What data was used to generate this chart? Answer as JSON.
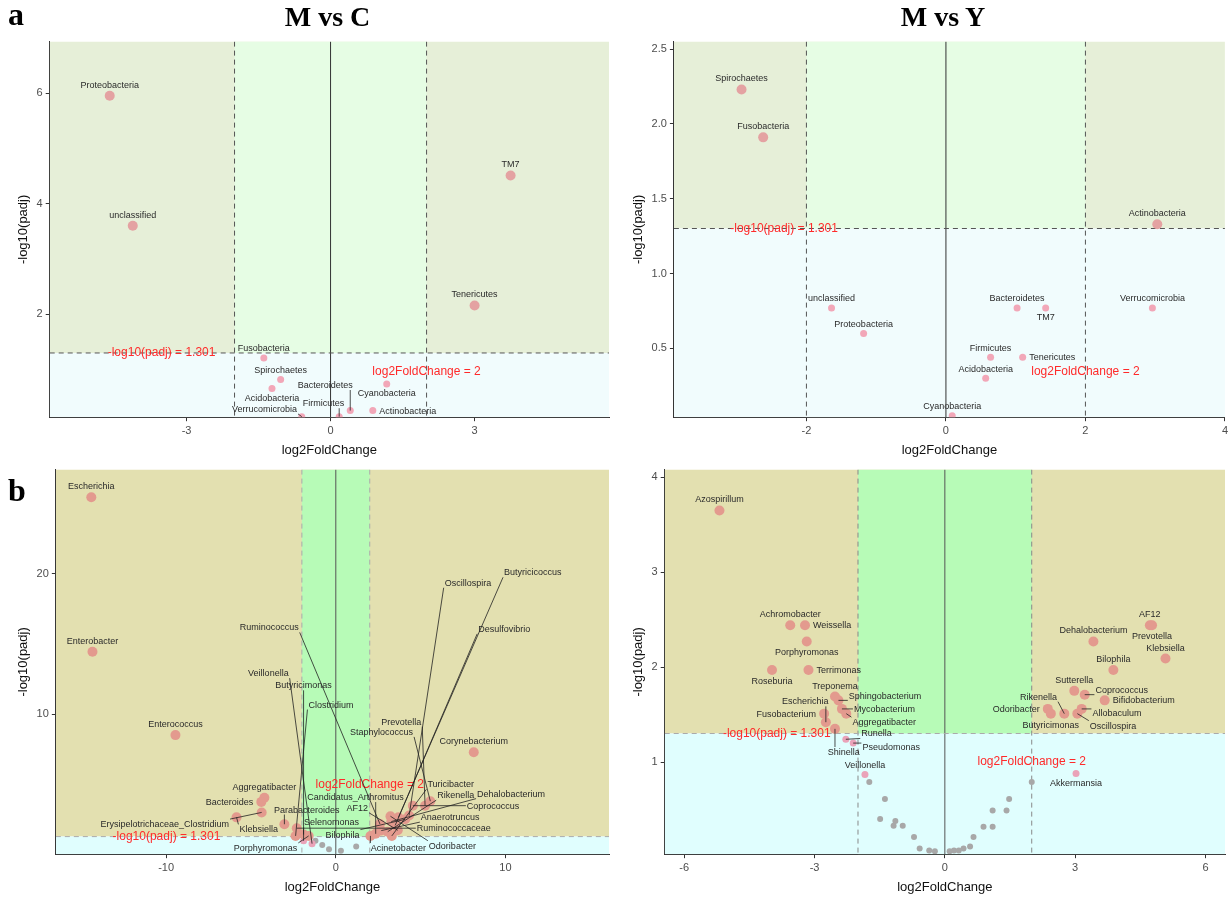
{
  "chart_data": [
    {
      "type": "scatter",
      "title": "M vs C",
      "annotations": [
        "a"
      ],
      "xlabel": "log2FoldChange",
      "ylabel": "-log10(padj)",
      "xlim": [
        -5.85,
        5.8
      ],
      "ylim": [
        0.14,
        6.93
      ],
      "xticks": [
        -3,
        0,
        3
      ],
      "yticks": [
        2,
        4,
        6
      ],
      "grid": false,
      "marker": "circle",
      "bands": [
        {
          "axis": "y",
          "from": 1.301,
          "to": 6.93,
          "color": "#e6efd8"
        },
        {
          "axis": "x",
          "from": -2,
          "to": 2,
          "color": "#e6fde4"
        },
        {
          "axis": "y",
          "from": 0.14,
          "to": 1.301,
          "color": "#f1fcfd"
        }
      ],
      "ref_lines": [
        {
          "axis": "x",
          "value": 0,
          "color": "#333333",
          "line_style": "solid"
        },
        {
          "axis": "x",
          "value": -2,
          "color": "#555555",
          "line_style": "dashed"
        },
        {
          "axis": "x",
          "value": 2,
          "color": "#555555",
          "line_style": "dashed",
          "label": "log2FoldChange = 2"
        },
        {
          "axis": "y",
          "value": 1.301,
          "color": "#555555",
          "line_style": "dashed",
          "label": "-log10(padj) = 1.301"
        }
      ],
      "series": [
        {
          "type": "scatter",
          "color": "#e4a2a2",
          "x": [
            -4.6,
            -4.12,
            3.75,
            3.0
          ],
          "values": [
            5.95,
            3.6,
            4.51,
            2.16
          ],
          "value_labels": [
            "Proteobacteria",
            "unclassified",
            "TM7",
            "Tenericutes"
          ]
        },
        {
          "type": "scatter",
          "color": "#f2a7b8",
          "x": [
            -1.39,
            -1.04,
            -1.22,
            1.17,
            0.41,
            0.88,
            -0.6,
            0.18
          ],
          "values": [
            1.21,
            0.82,
            0.66,
            0.74,
            0.26,
            0.26,
            0.15,
            0.15
          ],
          "value_labels": [
            "Fusobacteria",
            "Spirochaetes",
            "Acidobacteria",
            "Cyanobacteria",
            "Bacteroidetes",
            "Actinobacteria",
            "Verrucomicrobia",
            "Firmicutes"
          ]
        }
      ]
    },
    {
      "type": "scatter",
      "title": "M vs Y",
      "xlabel": "log2FoldChange",
      "ylabel": "-log10(padj)",
      "xlim": [
        -3.9,
        4
      ],
      "ylim": [
        0.04,
        2.55
      ],
      "xticks": [
        -2,
        0,
        2,
        4
      ],
      "yticks": [
        0.5,
        {
          "value": 1,
          "label": "1.0"
        },
        1.5,
        {
          "value": 2,
          "label": "2.0"
        },
        2.5
      ],
      "grid": false,
      "marker": "circle",
      "bands": [
        {
          "axis": "y",
          "from": 1.301,
          "to": 2.55,
          "color": "#e6efd8"
        },
        {
          "axis": "x",
          "from": -2,
          "to": 2,
          "color": "#e6fde4"
        },
        {
          "axis": "y",
          "from": 0.04,
          "to": 1.301,
          "color": "#f1fcfd"
        }
      ],
      "ref_lines": [
        {
          "axis": "x",
          "value": 0,
          "color": "#333333",
          "line_style": "solid"
        },
        {
          "axis": "x",
          "value": -2,
          "color": "#555555",
          "line_style": "dashed"
        },
        {
          "axis": "x",
          "value": 2,
          "color": "#555555",
          "line_style": "dashed",
          "label": "log2FoldChange = 2"
        },
        {
          "axis": "y",
          "value": 1.301,
          "color": "#555555",
          "line_style": "dashed",
          "label": "-log10(padj) = 1.301"
        }
      ],
      "series": [
        {
          "type": "scatter",
          "color": "#e4a2a2",
          "x": [
            -2.93,
            -2.62,
            3.03
          ],
          "values": [
            2.23,
            1.91,
            1.33
          ],
          "value_labels": [
            "Spirochaetes",
            "Fusobacteria",
            "Actinobacteria"
          ]
        },
        {
          "type": "scatter",
          "color": "#f2a7b8",
          "x": [
            2.96,
            -1.64,
            -1.18,
            1.02,
            1.43,
            0.64,
            1.1,
            0.57,
            0.09
          ],
          "values": [
            0.77,
            0.77,
            0.6,
            0.77,
            0.77,
            0.44,
            0.44,
            0.3,
            0.05
          ],
          "value_labels": [
            "Verrucomicrobia",
            "unclassified",
            "Proteobacteria",
            "Bacteroidetes",
            "TM7",
            "Firmicutes",
            "Tenericutes",
            "Acidobacteria",
            "Cyanobacteria"
          ]
        }
      ]
    },
    {
      "type": "scatter",
      "annotations": [
        "b"
      ],
      "xlabel": "log2FoldChange",
      "ylabel": "-log10(padj)",
      "xlim": [
        -16.5,
        16.1
      ],
      "ylim": [
        0.05,
        27.4
      ],
      "xticks": [
        -10,
        0,
        10
      ],
      "yticks": [
        10,
        20
      ],
      "grid": false,
      "marker": "circle",
      "bands": [
        {
          "axis": "y",
          "from": 1.301,
          "to": 27.4,
          "color": "#e3e0b0"
        },
        {
          "axis": "x",
          "from": -2,
          "to": 2,
          "color": "#b7fbb7"
        },
        {
          "axis": "y",
          "from": 0.05,
          "to": 1.301,
          "color": "#e0fefe"
        }
      ],
      "ref_lines": [
        {
          "axis": "x",
          "value": 0,
          "color": "#555555",
          "line_style": "solid"
        },
        {
          "axis": "x",
          "value": -2,
          "color": "#aaaaaa",
          "line_style": "dashed"
        },
        {
          "axis": "x",
          "value": 2,
          "color": "#aaaaaa",
          "line_style": "dashed",
          "label": "log2FoldChange = 2"
        },
        {
          "axis": "y",
          "value": 1.301,
          "color": "#aaaaaa",
          "line_style": "dashed",
          "label": "-log10(padj) = 1.301"
        }
      ],
      "series": [
        {
          "type": "scatter",
          "color": "#e39a8e",
          "x": [
            -14.41,
            -14.34,
            -9.45,
            8.13,
            -4.21,
            -4.39,
            -4.37,
            -5.85,
            -3.03,
            -2.3,
            -1.9,
            -1.6,
            -2.37,
            2.04,
            2.35,
            2.68,
            3.3,
            3.27,
            3.5,
            3.69,
            4.54,
            5.57,
            5.26,
            3.22,
            4.32,
            4.09,
            2.6,
            3.06,
            3.65
          ],
          "values": [
            25.44,
            14.45,
            8.52,
            7.3,
            4.07,
            3.77,
            3.02,
            2.67,
            2.18,
            1.9,
            1.45,
            1.35,
            1.35,
            1.35,
            1.5,
            1.73,
            1.35,
            2.37,
            2.1,
            2.67,
            3.5,
            3.82,
            3.5,
            2.75,
            2.8,
            2.53,
            2.2,
            1.65,
            1.75
          ],
          "value_labels": [
            "Escherichia",
            "Enterobacter",
            "Enterococcus",
            "Corynebacterium",
            "Aggregatibacter",
            "Bacteroides",
            "Erysipelotrichaceae_Clostridium",
            "Klebsiella",
            "Parabacteroides",
            "Ruminococcaceae",
            "Selenomonas",
            "Porphyromonas",
            "Clostridium",
            "Acinetobacter",
            "Candidatus_Arthromitus",
            "Anaerotruncus",
            "Turicibacter",
            "Dehalobacterium",
            "Desulfovibrio",
            "Butyricicoccus",
            "Coprococcus",
            "Staphylococcus",
            "Prevotella",
            "Odoribacter",
            "Oscillospira",
            "Bilophila",
            "Ruminococcus",
            "Rikenella",
            "AF12"
          ]
        },
        {
          "type": "scatter",
          "color": "#eaa3b9",
          "x": [
            -1.9,
            -1.4
          ],
          "values": [
            1.0,
            0.8
          ],
          "value_labels": [
            "Butyricimonas",
            "Veillonella"
          ]
        },
        {
          "type": "scatter",
          "color": "#a8a8a8",
          "x": [
            -1.2,
            -0.8,
            -0.4,
            0.3,
            1.2
          ],
          "values": [
            1.0,
            0.7,
            0.4,
            0.3,
            0.6
          ]
        }
      ]
    },
    {
      "type": "scatter",
      "xlabel": "log2FoldChange",
      "ylabel": "-log10(padj)",
      "xlim": [
        -6.45,
        6.45
      ],
      "ylim": [
        0.03,
        4.08
      ],
      "xticks": [
        -6,
        -3,
        0,
        3,
        6
      ],
      "yticks": [
        1,
        2,
        3,
        4
      ],
      "grid": false,
      "marker": "circle",
      "bands": [
        {
          "axis": "y",
          "from": 1.301,
          "to": 4.08,
          "color": "#e3e0b0"
        },
        {
          "axis": "x",
          "from": -2,
          "to": 2,
          "color": "#b7fbb7"
        },
        {
          "axis": "y",
          "from": 0.03,
          "to": 1.301,
          "color": "#e0fefe"
        }
      ],
      "ref_lines": [
        {
          "axis": "x",
          "value": 0,
          "color": "#555555",
          "line_style": "solid"
        },
        {
          "axis": "x",
          "value": -2,
          "color": "#888888",
          "line_style": "dashed"
        },
        {
          "axis": "x",
          "value": 2,
          "color": "#888888",
          "line_style": "dashed",
          "label": "log2FoldChange = 2"
        },
        {
          "axis": "y",
          "value": 1.301,
          "color": "#aaaaaa",
          "line_style": "dashed",
          "label": "-log10(padj) = 1.301"
        }
      ],
      "series": [
        {
          "type": "scatter",
          "color": "#e39a8e",
          "x": [
            -5.19,
            -3.56,
            -3.22,
            -3.18,
            -3.98,
            -3.14,
            -2.53,
            -2.45,
            -2.37,
            -2.78,
            -2.27,
            -2.74,
            -2.53,
            4.72,
            4.77,
            3.42,
            5.08,
            3.88,
            2.98,
            3.22,
            3.68,
            3.15,
            2.37,
            2.44,
            2.75,
            3.05
          ],
          "values": [
            3.65,
            2.44,
            2.44,
            2.27,
            1.97,
            1.97,
            1.69,
            1.65,
            1.56,
            1.51,
            1.51,
            1.42,
            1.35,
            2.44,
            2.44,
            2.27,
            2.09,
            1.97,
            1.75,
            1.71,
            1.65,
            1.56,
            1.56,
            1.51,
            1.51,
            1.51
          ],
          "value_labels": [
            "Azospirillum",
            "Achromobacter",
            "Weissella",
            "Porphyromonas",
            "Roseburia",
            "Terrimonas",
            "Treponema",
            "Sphingobacterium",
            "Mycobacterium",
            "Fusobacterium",
            "Aggregatibacter",
            "Escherichia",
            "Shinella",
            "AF12",
            "Prevotella",
            "Dehalobacterium",
            "Klebsiella",
            "Bilophila",
            "Sutterella",
            "Coprococcus",
            "Bifidobacterium",
            "Allobaculum",
            "Odoribacter",
            "Butyricimonas",
            "Rikenella",
            "Oscillospira"
          ]
        },
        {
          "type": "scatter",
          "color": "#eaa3b9",
          "x": [
            -2.28,
            -2.11,
            -1.84,
            3.02
          ],
          "values": [
            1.24,
            1.2,
            0.87,
            0.88
          ],
          "value_labels": [
            "Runella",
            "Pseudomonas",
            "Veillonella",
            "Akkermansia"
          ]
        },
        {
          "type": "scatter",
          "color": "#a8a8a8",
          "x": [
            -1.74,
            2.0,
            -1.38,
            -1.49,
            -1.14,
            -1.18,
            -0.97,
            -0.71,
            -0.58,
            -0.36,
            -0.23,
            0.11,
            0.21,
            0.32,
            0.43,
            0.58,
            0.66,
            0.89,
            1.1,
            1.1,
            1.42,
            1.48
          ],
          "values": [
            0.79,
            0.79,
            0.61,
            0.4,
            0.38,
            0.33,
            0.33,
            0.21,
            0.09,
            0.07,
            0.06,
            0.06,
            0.07,
            0.07,
            0.09,
            0.11,
            0.21,
            0.32,
            0.32,
            0.49,
            0.49,
            0.61
          ]
        }
      ]
    }
  ]
}
